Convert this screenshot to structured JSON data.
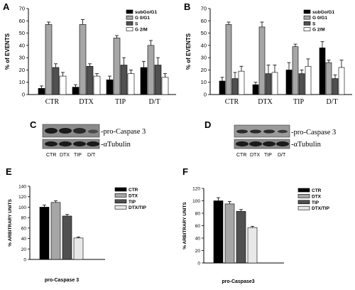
{
  "panels": {
    "A": {
      "letter": "A"
    },
    "B": {
      "letter": "B"
    },
    "C": {
      "letter": "C",
      "band_label": "-pro-Caspase 3",
      "control_label": "-αTubulin",
      "lanes": [
        "CTR",
        "DTX",
        "TIP",
        "D/T"
      ]
    },
    "D": {
      "letter": "D",
      "band_label": "-pro-Caspase 3",
      "control_label": "-αTubulin",
      "lanes": [
        "CTR",
        "DTX",
        "TIP",
        "D/T"
      ]
    },
    "E": {
      "letter": "E"
    },
    "F": {
      "letter": "F"
    }
  },
  "chart_data": [
    {
      "panel": "A",
      "type": "bar",
      "title": "",
      "ylabel": "% of EVENTS",
      "xlabel": "",
      "ylim": [
        0,
        70
      ],
      "yticks": [
        0,
        10,
        20,
        30,
        40,
        50,
        60,
        70
      ],
      "categories": [
        "CTR",
        "DTX",
        "TIP",
        "D/T"
      ],
      "legend": "top-right",
      "series": [
        {
          "name": "subGo/G1",
          "color": "#000000",
          "values": [
            5,
            6,
            12,
            22
          ],
          "errors": [
            2,
            2,
            3,
            5
          ]
        },
        {
          "name": "G 0/G1",
          "color": "#a6a6a6",
          "values": [
            57,
            57,
            46,
            40
          ],
          "errors": [
            2,
            4,
            2,
            4
          ]
        },
        {
          "name": "S",
          "color": "#505050",
          "values": [
            22,
            23,
            24,
            24
          ],
          "errors": [
            3,
            2,
            6,
            6
          ]
        },
        {
          "name": "G 2/M",
          "color": "#ffffff",
          "values": [
            15,
            15,
            17,
            14
          ],
          "errors": [
            3,
            2,
            3,
            3
          ]
        }
      ]
    },
    {
      "panel": "B",
      "type": "bar",
      "title": "",
      "ylabel": "% of EVENTS",
      "xlabel": "",
      "ylim": [
        0,
        70
      ],
      "yticks": [
        0,
        10,
        20,
        30,
        40,
        50,
        60,
        70
      ],
      "categories": [
        "CTR",
        "DTX",
        "TIP",
        "D/T"
      ],
      "legend": "top-right",
      "series": [
        {
          "name": "subGo/G1",
          "color": "#000000",
          "values": [
            11,
            8,
            20,
            38
          ],
          "errors": [
            3,
            2,
            6,
            5
          ]
        },
        {
          "name": "G 0/G1",
          "color": "#a6a6a6",
          "values": [
            57,
            55,
            39,
            26
          ],
          "errors": [
            2,
            4,
            2,
            2
          ]
        },
        {
          "name": "S",
          "color": "#505050",
          "values": [
            13,
            17,
            17,
            13
          ],
          "errors": [
            5,
            7,
            3,
            3
          ]
        },
        {
          "name": "G 2/M",
          "color": "#ffffff",
          "values": [
            19,
            18,
            23,
            22
          ],
          "errors": [
            4,
            6,
            6,
            6
          ]
        }
      ]
    },
    {
      "panel": "E",
      "type": "bar",
      "title": "",
      "ylabel": "% ARBITRARY UNITS",
      "xlabel": "pro-Caspase 3",
      "ylim": [
        0,
        140
      ],
      "yticks": [
        0,
        20,
        40,
        60,
        80,
        100,
        120,
        140
      ],
      "categories": [
        "pro-Caspase 3"
      ],
      "legend": "right",
      "series": [
        {
          "name": "CTR",
          "color": "#000000",
          "values": [
            100
          ],
          "errors": [
            4
          ]
        },
        {
          "name": "DTX",
          "color": "#a6a6a6",
          "values": [
            109
          ],
          "errors": [
            3
          ]
        },
        {
          "name": "TIP",
          "color": "#505050",
          "values": [
            83
          ],
          "errors": [
            3
          ]
        },
        {
          "name": "DTX/TIP",
          "color": "#e8e8e8",
          "values": [
            41
          ],
          "errors": [
            2
          ]
        }
      ]
    },
    {
      "panel": "F",
      "type": "bar",
      "title": "",
      "ylabel": "% ARBITRARY UNITS",
      "xlabel": "pro-Caspase3",
      "ylim": [
        0,
        120
      ],
      "yticks": [
        0,
        20,
        40,
        60,
        80,
        100,
        120
      ],
      "categories": [
        "pro-Caspase3"
      ],
      "legend": "right",
      "series": [
        {
          "name": "CTR",
          "color": "#000000",
          "values": [
            100
          ],
          "errors": [
            5
          ]
        },
        {
          "name": "DTX",
          "color": "#a6a6a6",
          "values": [
            95
          ],
          "errors": [
            4
          ]
        },
        {
          "name": "TIP",
          "color": "#505050",
          "values": [
            83
          ],
          "errors": [
            3
          ]
        },
        {
          "name": "DTX/TIP",
          "color": "#e8e8e8",
          "values": [
            57
          ],
          "errors": [
            2
          ]
        }
      ]
    }
  ]
}
